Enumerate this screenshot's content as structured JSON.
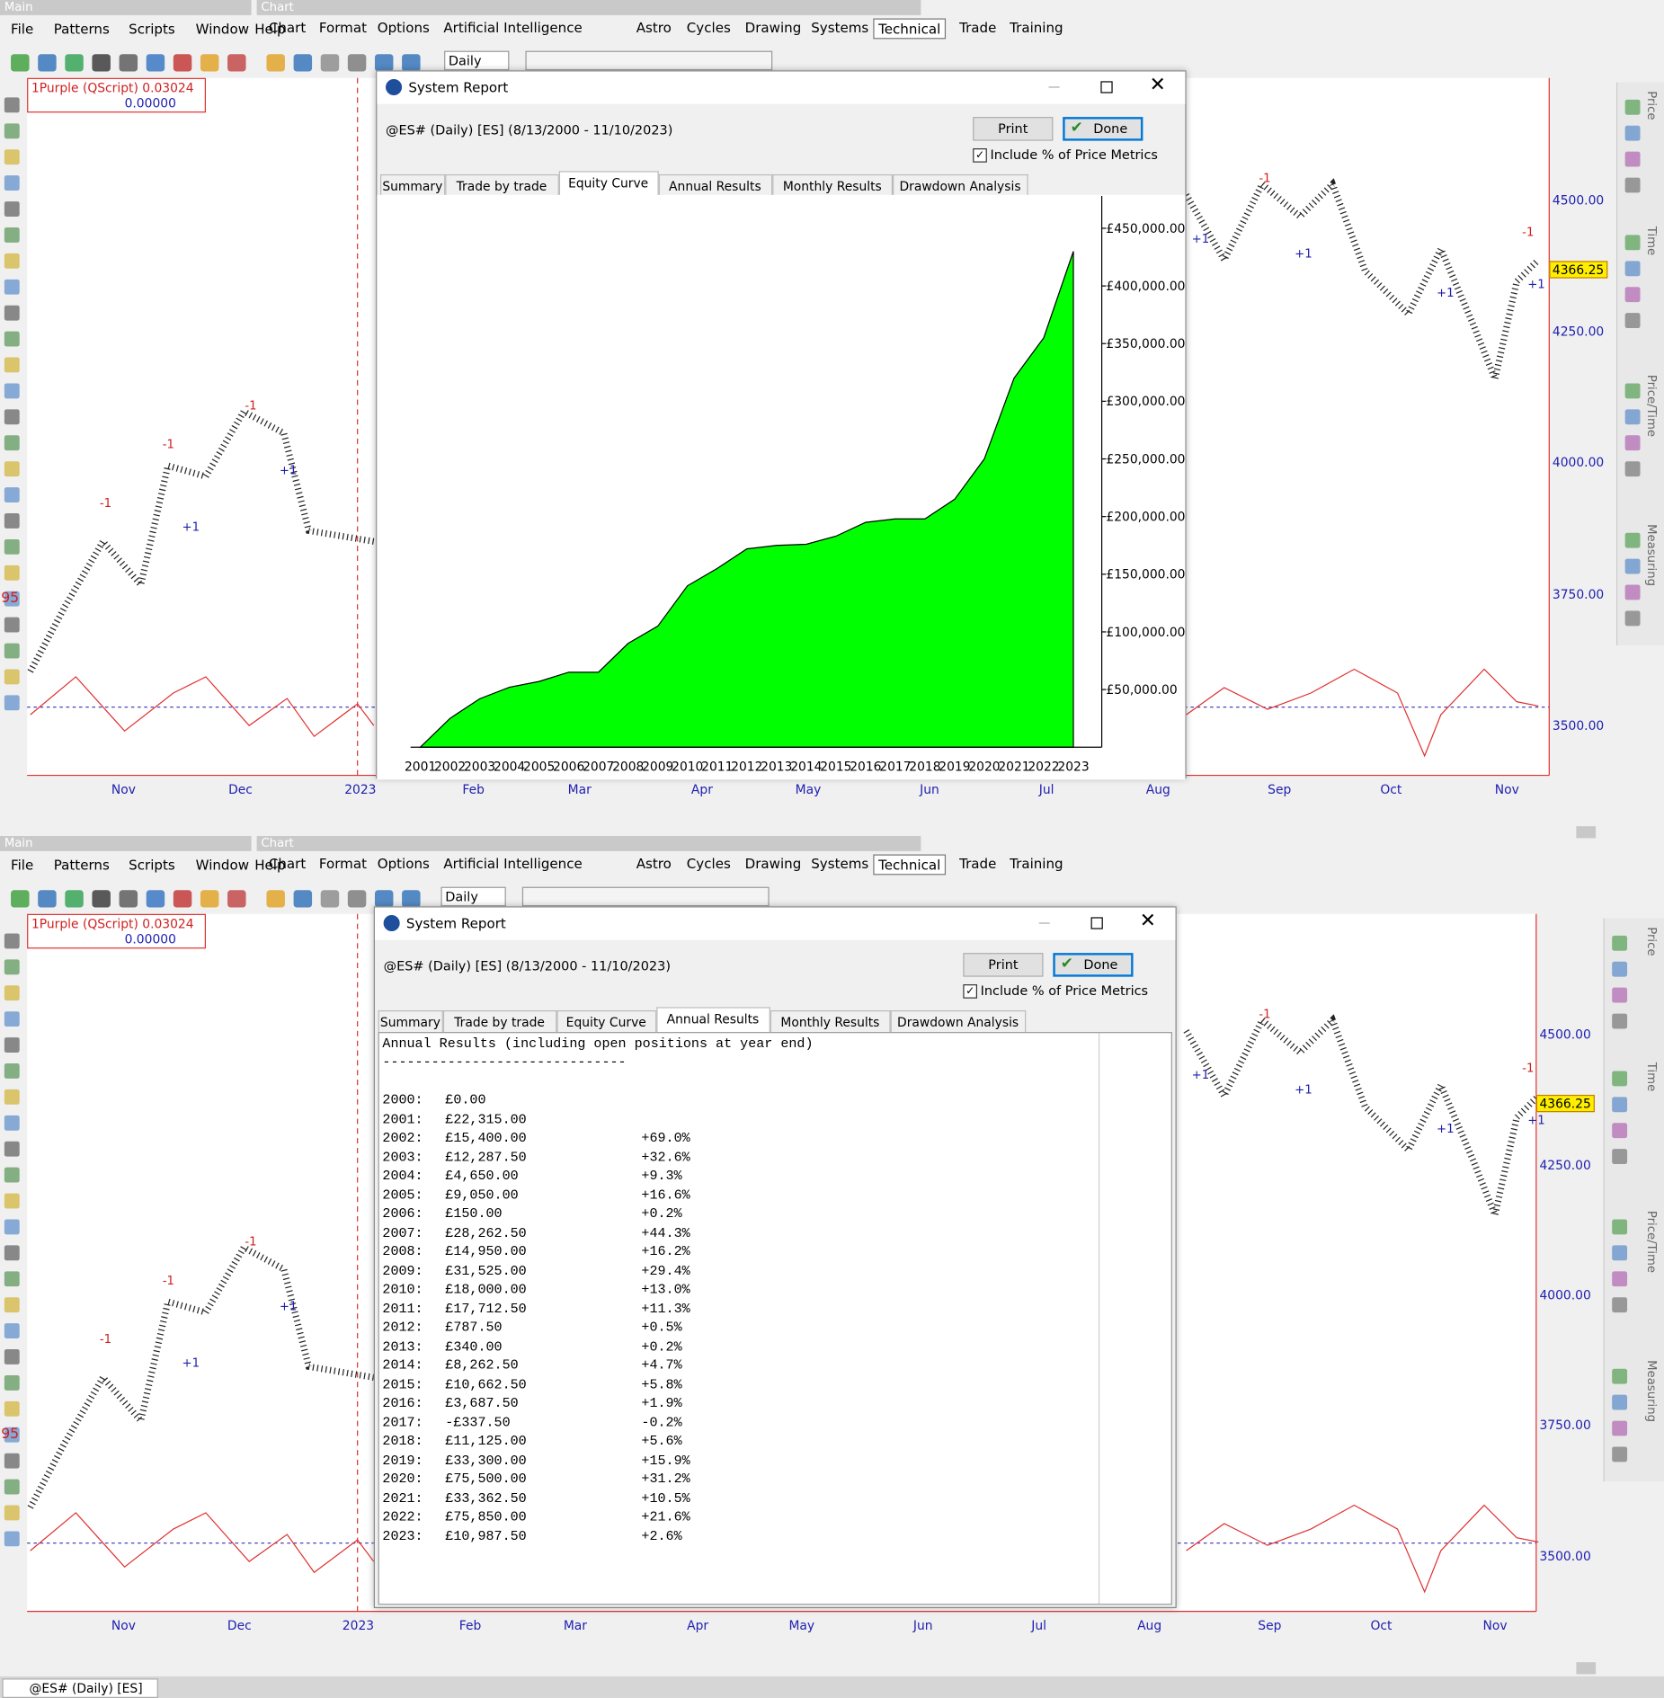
{
  "window_titles": [
    "Main",
    "Chart"
  ],
  "main_menu": [
    "File",
    "Patterns",
    "Scripts",
    "Window",
    "Help"
  ],
  "chart_menu": [
    "Chart",
    "Format",
    "Options",
    "Artificial Intelligence",
    "Astro",
    "Cycles",
    "Drawing",
    "Systems",
    "Technical",
    "Trade",
    "Training"
  ],
  "timeframe": "Daily",
  "indicator_name": "1Purple (QScript)  0.03024",
  "indicator_value": "0.00000",
  "left_number": "95",
  "trade_labels": [
    "+1",
    "-1"
  ],
  "price_labels": [
    "4500.00",
    "4250.00",
    "4000.00",
    "3750.00",
    "3500.00"
  ],
  "current_price": "4366.25",
  "months": [
    "Nov",
    "Dec",
    "2023",
    "Feb",
    "Mar",
    "Apr",
    "May",
    "Jun",
    "Jul",
    "Aug",
    "Sep",
    "Oct",
    "Nov"
  ],
  "side_tabs": [
    "Price",
    "Time",
    "Price/Time",
    "Measuring"
  ],
  "report": {
    "title": "System Report",
    "symbol": "@ES# (Daily) [ES]  (8/13/2000 - 11/10/2023)",
    "print": "Print",
    "done": "Done",
    "include": "Include % of Price Metrics",
    "tabs": [
      "Summary",
      "Trade by trade",
      "Equity Curve",
      "Annual Results",
      "Monthly Results",
      "Drawdown Analysis"
    ]
  },
  "chart_data": {
    "type": "area",
    "color": "#00ff00",
    "categories": [
      "2001",
      "2002",
      "2003",
      "2004",
      "2005",
      "2006",
      "2007",
      "2008",
      "2009",
      "2010",
      "2011",
      "2012",
      "2013",
      "2014",
      "2015",
      "2016",
      "2017",
      "2018",
      "2019",
      "2020",
      "2021",
      "2022",
      "2023"
    ],
    "values": [
      0,
      25000,
      42000,
      52000,
      57000,
      65000,
      65000,
      90000,
      105000,
      140000,
      155000,
      172000,
      175000,
      176000,
      183000,
      195000,
      198000,
      198000,
      215000,
      250000,
      320000,
      355000,
      430000
    ],
    "ylim": [
      0,
      478000
    ],
    "yticks": [
      {
        "value": 50000,
        "label": "£50,000.00"
      },
      {
        "value": 100000,
        "label": "£100,000.00"
      },
      {
        "value": 150000,
        "label": "£150,000.00"
      },
      {
        "value": 200000,
        "label": "£200,000.00"
      },
      {
        "value": 250000,
        "label": "£250,000.00"
      },
      {
        "value": 300000,
        "label": "£300,000.00"
      },
      {
        "value": 350000,
        "label": "£350,000.00"
      },
      {
        "value": 400000,
        "label": "£400,000.00"
      },
      {
        "value": 450000,
        "label": "£450,000.00"
      }
    ]
  },
  "annual": {
    "heading": "Annual Results (including open positions at year end)",
    "separator": "------------------------------",
    "rows": [
      {
        "year": "2000:",
        "amount": "£0.00"
      },
      {
        "year": "2001:",
        "amount": "£22,315.00"
      },
      {
        "year": "2002:",
        "amount": "£15,400.00",
        "pct": "+69.0%"
      },
      {
        "year": "2003:",
        "amount": "£12,287.50",
        "pct": "+32.6%"
      },
      {
        "year": "2004:",
        "amount": "£4,650.00",
        "pct": "+9.3%"
      },
      {
        "year": "2005:",
        "amount": "£9,050.00",
        "pct": "+16.6%"
      },
      {
        "year": "2006:",
        "amount": "£150.00",
        "pct": "+0.2%"
      },
      {
        "year": "2007:",
        "amount": "£28,262.50",
        "pct": "+44.3%"
      },
      {
        "year": "2008:",
        "amount": "£14,950.00",
        "pct": "+16.2%"
      },
      {
        "year": "2009:",
        "amount": "£31,525.00",
        "pct": "+29.4%"
      },
      {
        "year": "2010:",
        "amount": "£18,000.00",
        "pct": "+13.0%"
      },
      {
        "year": "2011:",
        "amount": "£17,712.50",
        "pct": "+11.3%"
      },
      {
        "year": "2012:",
        "amount": "£787.50",
        "pct": "+0.5%"
      },
      {
        "year": "2013:",
        "amount": "£340.00",
        "pct": "+0.2%"
      },
      {
        "year": "2014:",
        "amount": "£8,262.50",
        "pct": "+4.7%"
      },
      {
        "year": "2015:",
        "amount": "£10,662.50",
        "pct": "+5.8%"
      },
      {
        "year": "2016:",
        "amount": "£3,687.50",
        "pct": "+1.9%"
      },
      {
        "year": "2017:",
        "amount": "-£337.50",
        "pct": "-0.2%"
      },
      {
        "year": "2018:",
        "amount": "£11,125.00",
        "pct": "+5.6%"
      },
      {
        "year": "2019:",
        "amount": "£33,300.00",
        "pct": "+15.9%"
      },
      {
        "year": "2020:",
        "amount": "£75,500.00",
        "pct": "+31.2%"
      },
      {
        "year": "2021:",
        "amount": "£33,362.50",
        "pct": "+10.5%"
      },
      {
        "year": "2022:",
        "amount": "£75,850.00",
        "pct": "+21.6%"
      },
      {
        "year": "2023:",
        "amount": "£10,987.50",
        "pct": "+2.6%"
      }
    ]
  },
  "taskbar": "@ES# (Daily) [ES]"
}
